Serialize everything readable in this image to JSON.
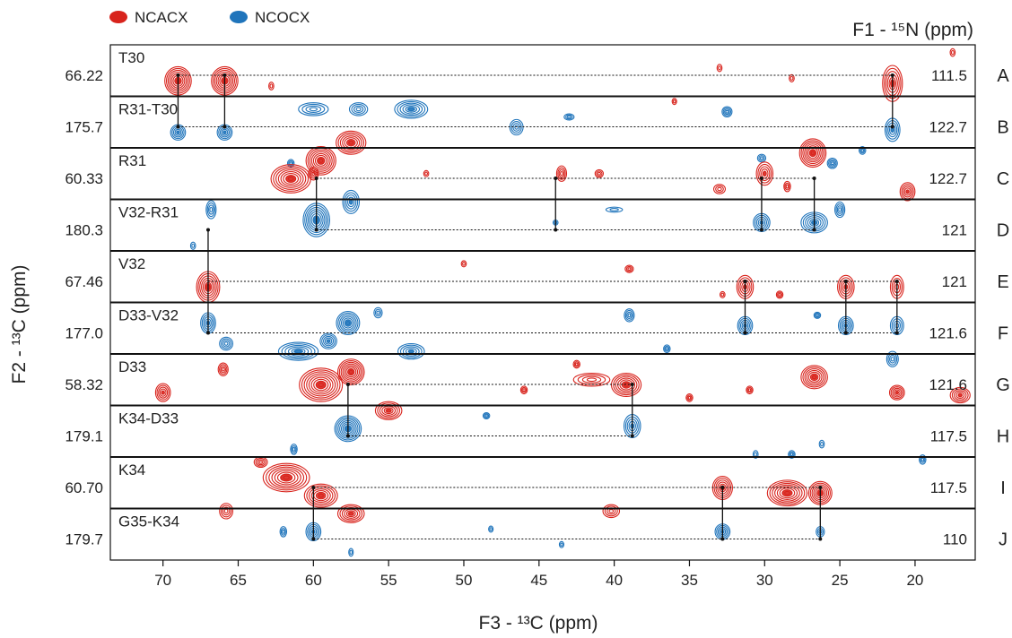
{
  "chart_data": {
    "type": "strip-plot",
    "legend": [
      {
        "name": "NCACX",
        "color": "#d8231c"
      },
      {
        "name": "NCOCX",
        "color": "#1f74bb"
      }
    ],
    "legend_position": "top-left",
    "x_axis": {
      "label": "F3 - ¹³C (ppm)",
      "range": [
        73.5,
        16
      ],
      "ticks": [
        "70",
        "65",
        "60",
        "55",
        "50",
        "45",
        "40",
        "35",
        "30",
        "25",
        "20"
      ]
    },
    "left_axis_label": "F2 - ¹³C (ppm)",
    "right_axis_label": "F1 - ¹⁵N (ppm)",
    "strips": [
      {
        "letter": "A",
        "name": "T30",
        "f2": "66.22",
        "f1": "111.5",
        "type": "NCACX",
        "peaks": [
          {
            "x": 69.0,
            "s": 0.2,
            "w": 1.6,
            "h": 0.55
          },
          {
            "x": 65.9,
            "s": 0.2,
            "w": 1.6,
            "h": 0.55
          },
          {
            "x": 21.5,
            "s": 0.25,
            "w": 1.2,
            "h": 0.7
          },
          {
            "x": 62.8,
            "s": 0.3,
            "w": 0.3,
            "h": 0.15
          },
          {
            "x": 36.0,
            "s": 0.6,
            "w": 0.25,
            "h": 0.12
          },
          {
            "x": 33.0,
            "s": -0.05,
            "w": 0.3,
            "h": 0.14
          },
          {
            "x": 28.2,
            "s": 0.15,
            "w": 0.3,
            "h": 0.14
          },
          {
            "x": 17.5,
            "s": -0.35,
            "w": 0.3,
            "h": 0.15
          }
        ]
      },
      {
        "letter": "B",
        "name": "R31-T30",
        "f2": "175.7",
        "f1": "122.7",
        "type": "NCOCX",
        "peaks": [
          {
            "x": 69.0,
            "s": 0.2,
            "w": 0.9,
            "h": 0.3
          },
          {
            "x": 65.9,
            "s": 0.2,
            "w": 0.9,
            "h": 0.3
          },
          {
            "x": 21.5,
            "s": 0.15,
            "w": 0.9,
            "h": 0.45
          },
          {
            "x": 60.0,
            "s": -0.25,
            "w": 1.8,
            "h": 0.25
          },
          {
            "x": 57.0,
            "s": -0.25,
            "w": 1.1,
            "h": 0.25
          },
          {
            "x": 53.5,
            "s": -0.25,
            "w": 2.0,
            "h": 0.35
          },
          {
            "x": 46.5,
            "s": 0.1,
            "w": 0.8,
            "h": 0.3
          },
          {
            "x": 43.0,
            "s": -0.1,
            "w": 0.6,
            "h": 0.12
          },
          {
            "x": 32.5,
            "s": -0.2,
            "w": 0.6,
            "h": 0.2
          },
          {
            "x": 30.2,
            "s": 0.7,
            "w": 0.5,
            "h": 0.15
          },
          {
            "x": 25.5,
            "s": 0.8,
            "w": 0.6,
            "h": 0.2
          },
          {
            "x": 23.5,
            "s": 0.55,
            "w": 0.4,
            "h": 0.15
          },
          {
            "x": 61.5,
            "s": 0.8,
            "w": 0.4,
            "h": 0.15
          }
        ]
      },
      {
        "letter": "C",
        "name": "R31",
        "f2": "60.33",
        "f1": "122.7",
        "type": "NCACX",
        "peaks": [
          {
            "x": 61.5,
            "s": 0.1,
            "w": 2.4,
            "h": 0.55
          },
          {
            "x": 59.5,
            "s": -0.25,
            "w": 1.8,
            "h": 0.55
          },
          {
            "x": 57.5,
            "s": -0.6,
            "w": 1.8,
            "h": 0.45
          },
          {
            "x": 60.0,
            "s": 0.0,
            "w": 0.6,
            "h": 0.25
          },
          {
            "x": 43.5,
            "s": 0.0,
            "w": 0.6,
            "h": 0.3
          },
          {
            "x": 41.0,
            "s": 0.0,
            "w": 0.5,
            "h": 0.15
          },
          {
            "x": 30.0,
            "s": 0.0,
            "w": 1.0,
            "h": 0.45
          },
          {
            "x": 26.8,
            "s": -0.4,
            "w": 1.6,
            "h": 0.55
          },
          {
            "x": 33.0,
            "s": 0.3,
            "w": 0.7,
            "h": 0.18
          },
          {
            "x": 20.5,
            "s": 0.35,
            "w": 0.9,
            "h": 0.35
          },
          {
            "x": 28.5,
            "s": 0.25,
            "w": 0.4,
            "h": 0.2
          },
          {
            "x": 52.5,
            "s": 0.0,
            "w": 0.3,
            "h": 0.12
          }
        ]
      },
      {
        "letter": "D",
        "name": "V32-R31",
        "f2": "180.3",
        "f1": "121",
        "type": "NCOCX",
        "peaks": [
          {
            "x": 59.8,
            "s": -0.1,
            "w": 1.6,
            "h": 0.65
          },
          {
            "x": 57.5,
            "s": -0.45,
            "w": 1.0,
            "h": 0.45
          },
          {
            "x": 30.2,
            "s": -0.05,
            "w": 1.0,
            "h": 0.35
          },
          {
            "x": 26.7,
            "s": -0.05,
            "w": 1.6,
            "h": 0.4
          },
          {
            "x": 43.9,
            "s": -0.05,
            "w": 0.3,
            "h": 0.1
          },
          {
            "x": 66.8,
            "s": -0.3,
            "w": 0.6,
            "h": 0.35
          },
          {
            "x": 68.0,
            "s": 0.4,
            "w": 0.3,
            "h": 0.14
          },
          {
            "x": 40.0,
            "s": -0.3,
            "w": 1.0,
            "h": 0.1
          },
          {
            "x": 25.0,
            "s": -0.3,
            "w": 0.6,
            "h": 0.3
          }
        ]
      },
      {
        "letter": "E",
        "name": "V32",
        "f2": "67.46",
        "f1": "121",
        "type": "NCACX",
        "peaks": [
          {
            "x": 67.0,
            "s": 0.2,
            "w": 1.4,
            "h": 0.6
          },
          {
            "x": 31.3,
            "s": 0.2,
            "w": 1.0,
            "h": 0.45
          },
          {
            "x": 24.6,
            "s": 0.2,
            "w": 1.0,
            "h": 0.45
          },
          {
            "x": 21.2,
            "s": 0.2,
            "w": 0.8,
            "h": 0.45
          },
          {
            "x": 50.0,
            "s": -0.25,
            "w": 0.3,
            "h": 0.12
          },
          {
            "x": 39.0,
            "s": -0.15,
            "w": 0.5,
            "h": 0.14
          },
          {
            "x": 32.8,
            "s": 0.35,
            "w": 0.3,
            "h": 0.12
          },
          {
            "x": 29.0,
            "s": 0.35,
            "w": 0.4,
            "h": 0.14
          }
        ]
      },
      {
        "letter": "F",
        "name": "D33-V32",
        "f2": "177.0",
        "f1": "121.6",
        "type": "NCOCX",
        "peaks": [
          {
            "x": 67.0,
            "s": -0.1,
            "w": 0.9,
            "h": 0.4
          },
          {
            "x": 65.8,
            "s": 0.3,
            "w": 0.8,
            "h": 0.25
          },
          {
            "x": 61.0,
            "s": 0.45,
            "w": 2.4,
            "h": 0.35
          },
          {
            "x": 59.0,
            "s": 0.25,
            "w": 1.0,
            "h": 0.3
          },
          {
            "x": 57.7,
            "s": -0.1,
            "w": 1.4,
            "h": 0.45
          },
          {
            "x": 53.5,
            "s": 0.45,
            "w": 1.6,
            "h": 0.3
          },
          {
            "x": 31.3,
            "s": -0.05,
            "w": 0.9,
            "h": 0.35
          },
          {
            "x": 24.6,
            "s": -0.05,
            "w": 0.9,
            "h": 0.35
          },
          {
            "x": 21.2,
            "s": -0.05,
            "w": 0.8,
            "h": 0.35
          },
          {
            "x": 21.5,
            "s": 0.6,
            "w": 0.7,
            "h": 0.3
          },
          {
            "x": 39.0,
            "s": -0.25,
            "w": 0.6,
            "h": 0.25
          },
          {
            "x": 36.5,
            "s": 0.4,
            "w": 0.4,
            "h": 0.15
          },
          {
            "x": 55.7,
            "s": -0.3,
            "w": 0.5,
            "h": 0.2
          },
          {
            "x": 26.5,
            "s": -0.25,
            "w": 0.4,
            "h": 0.12
          }
        ]
      },
      {
        "letter": "G",
        "name": "D33",
        "f2": "58.32",
        "f1": "121.6",
        "type": "NCACX",
        "peaks": [
          {
            "x": 59.5,
            "s": 0.1,
            "w": 2.6,
            "h": 0.65
          },
          {
            "x": 57.5,
            "s": -0.15,
            "w": 1.6,
            "h": 0.5
          },
          {
            "x": 55.0,
            "s": 0.6,
            "w": 1.6,
            "h": 0.35
          },
          {
            "x": 39.2,
            "s": 0.1,
            "w": 1.8,
            "h": 0.45
          },
          {
            "x": 41.5,
            "s": 0.0,
            "w": 2.2,
            "h": 0.25
          },
          {
            "x": 26.7,
            "s": -0.05,
            "w": 1.6,
            "h": 0.45
          },
          {
            "x": 21.2,
            "s": 0.25,
            "w": 0.9,
            "h": 0.28
          },
          {
            "x": 70.0,
            "s": 0.25,
            "w": 0.9,
            "h": 0.35
          },
          {
            "x": 17.0,
            "s": 0.3,
            "w": 1.2,
            "h": 0.3
          },
          {
            "x": 66.0,
            "s": -0.2,
            "w": 0.6,
            "h": 0.25
          },
          {
            "x": 46.0,
            "s": 0.2,
            "w": 0.4,
            "h": 0.15
          },
          {
            "x": 42.5,
            "s": -0.3,
            "w": 0.4,
            "h": 0.15
          },
          {
            "x": 35.0,
            "s": 0.35,
            "w": 0.4,
            "h": 0.15
          },
          {
            "x": 31.0,
            "s": 0.2,
            "w": 0.4,
            "h": 0.15
          }
        ]
      },
      {
        "letter": "H",
        "name": "K34-D33",
        "f2": "179.1",
        "f1": "117.5",
        "type": "NCOCX",
        "peaks": [
          {
            "x": 57.7,
            "s": -0.05,
            "w": 1.6,
            "h": 0.5
          },
          {
            "x": 38.8,
            "s": -0.1,
            "w": 1.0,
            "h": 0.45
          },
          {
            "x": 61.3,
            "s": 0.35,
            "w": 0.4,
            "h": 0.2
          },
          {
            "x": 48.5,
            "s": -0.3,
            "w": 0.4,
            "h": 0.12
          },
          {
            "x": 30.6,
            "s": 0.45,
            "w": 0.3,
            "h": 0.15
          },
          {
            "x": 28.2,
            "s": 0.45,
            "w": 0.4,
            "h": 0.15
          },
          {
            "x": 26.2,
            "s": 0.25,
            "w": 0.3,
            "h": 0.15
          },
          {
            "x": 19.5,
            "s": 0.55,
            "w": 0.4,
            "h": 0.18
          }
        ]
      },
      {
        "letter": "I",
        "name": "K34",
        "f2": "60.70",
        "f1": "117.5",
        "type": "NCACX",
        "peaks": [
          {
            "x": 61.8,
            "s": -0.1,
            "w": 2.8,
            "h": 0.55
          },
          {
            "x": 59.5,
            "s": 0.25,
            "w": 2.0,
            "h": 0.45
          },
          {
            "x": 57.5,
            "s": 0.6,
            "w": 1.6,
            "h": 0.35
          },
          {
            "x": 32.8,
            "s": 0.1,
            "w": 1.2,
            "h": 0.45
          },
          {
            "x": 28.5,
            "s": 0.2,
            "w": 2.4,
            "h": 0.5
          },
          {
            "x": 26.3,
            "s": 0.2,
            "w": 1.4,
            "h": 0.45
          },
          {
            "x": 40.2,
            "s": 0.55,
            "w": 1.0,
            "h": 0.25
          },
          {
            "x": 65.8,
            "s": 0.55,
            "w": 0.8,
            "h": 0.3
          },
          {
            "x": 63.5,
            "s": -0.4,
            "w": 0.8,
            "h": 0.2
          }
        ]
      },
      {
        "letter": "J",
        "name": "G35-K34",
        "f2": "179.7",
        "f1": "110",
        "type": "NCOCX",
        "peaks": [
          {
            "x": 60.0,
            "s": -0.05,
            "w": 0.9,
            "h": 0.35
          },
          {
            "x": 32.8,
            "s": -0.05,
            "w": 0.9,
            "h": 0.3
          },
          {
            "x": 26.3,
            "s": -0.05,
            "w": 0.5,
            "h": 0.2
          },
          {
            "x": 62.0,
            "s": -0.05,
            "w": 0.4,
            "h": 0.2
          },
          {
            "x": 57.5,
            "s": 0.35,
            "w": 0.2,
            "h": 0.15
          },
          {
            "x": 48.2,
            "s": -0.1,
            "w": 0.2,
            "h": 0.12
          },
          {
            "x": 43.5,
            "s": 0.2,
            "w": 0.2,
            "h": 0.12
          }
        ]
      }
    ],
    "assignment_lines": [
      {
        "x1": 69.0,
        "x2": 21.5,
        "strip": 0
      },
      {
        "x1": 69.0,
        "x2": 21.5,
        "strip": 1
      },
      {
        "x1": 59.8,
        "x2": 26.7,
        "strip": 2
      },
      {
        "x1": 59.8,
        "x2": 26.7,
        "strip": 3
      },
      {
        "x1": 67.0,
        "x2": 21.2,
        "strip": 4
      },
      {
        "x1": 67.0,
        "x2": 21.2,
        "strip": 5
      },
      {
        "x1": 57.7,
        "x2": 38.8,
        "strip": 6
      },
      {
        "x1": 57.7,
        "x2": 38.8,
        "strip": 7
      },
      {
        "x1": 60.0,
        "x2": 26.3,
        "strip": 8
      },
      {
        "x1": 60.0,
        "x2": 26.3,
        "strip": 9
      }
    ],
    "connectors": [
      {
        "x": 69.0,
        "from": 0,
        "to": 1
      },
      {
        "x": 65.9,
        "from": 0,
        "to": 1
      },
      {
        "x": 21.5,
        "from": 0,
        "to": 1
      },
      {
        "x": 59.8,
        "from": 2,
        "to": 3
      },
      {
        "x": 43.9,
        "from": 2,
        "to": 3
      },
      {
        "x": 30.2,
        "from": 2,
        "to": 3
      },
      {
        "x": 26.7,
        "from": 2,
        "to": 3
      },
      {
        "x": 67.0,
        "from": 3,
        "to": 5
      },
      {
        "x": 31.3,
        "from": 4,
        "to": 5
      },
      {
        "x": 24.6,
        "from": 4,
        "to": 5
      },
      {
        "x": 21.2,
        "from": 4,
        "to": 5
      },
      {
        "x": 57.7,
        "from": 6,
        "to": 7
      },
      {
        "x": 38.8,
        "from": 6,
        "to": 7
      },
      {
        "x": 60.0,
        "from": 8,
        "to": 9
      },
      {
        "x": 32.8,
        "from": 8,
        "to": 9
      },
      {
        "x": 26.3,
        "from": 8,
        "to": 9
      }
    ]
  }
}
